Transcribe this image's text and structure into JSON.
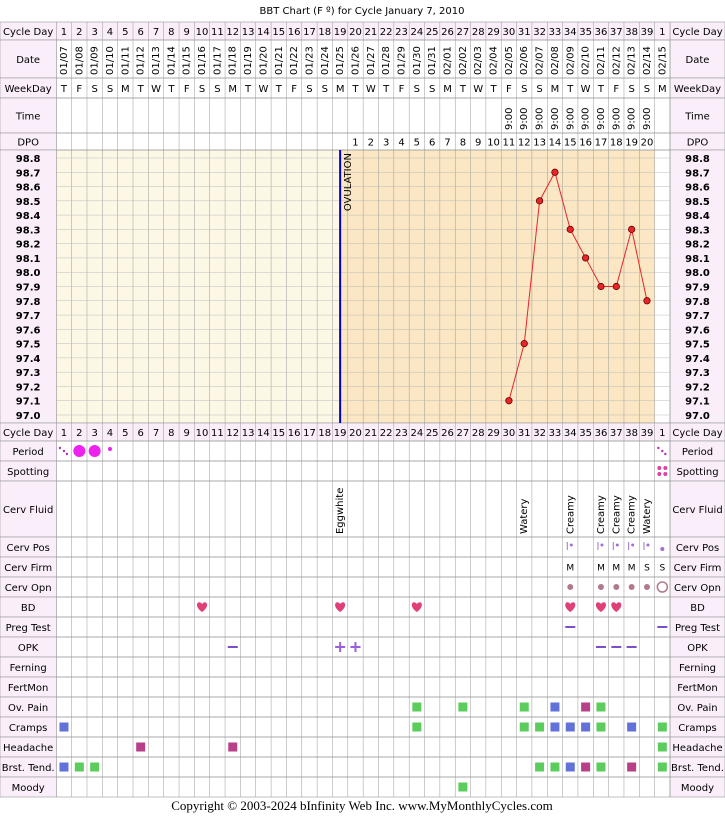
{
  "title": "BBT Chart (F º) for Cycle January 7, 2010",
  "footer": "Copyright © 2003-2024 bInfinity Web Inc.     www.MyMonthlyCycles.com",
  "row_labels": {
    "cycle_day": "Cycle Day",
    "date": "Date",
    "weekday": "WeekDay",
    "time": "Time",
    "dpo": "DPO",
    "period": "Period",
    "spotting": "Spotting",
    "cerv_fluid": "Cerv Fluid",
    "cerv_pos": "Cerv Pos",
    "cerv_firm": "Cerv Firm",
    "cerv_opn": "Cerv Opn",
    "bd": "BD",
    "preg_test": "Preg Test",
    "opk": "OPK",
    "ferning": "Ferning",
    "fertmon": "FertMon",
    "ov_pain": "Ov. Pain",
    "cramps": "Cramps",
    "headache": "Headache",
    "brst_tend": "Brst. Tend.",
    "moody": "Moody"
  },
  "chart_data": {
    "type": "line",
    "categories": [
      1,
      2,
      3,
      4,
      5,
      6,
      7,
      8,
      9,
      10,
      11,
      12,
      13,
      14,
      15,
      16,
      17,
      18,
      19,
      20,
      21,
      22,
      23,
      24,
      25,
      26,
      27,
      28,
      29,
      30,
      31,
      32,
      33,
      34,
      35,
      36,
      37,
      38,
      39,
      1
    ],
    "dates": [
      "01/07",
      "01/08",
      "01/09",
      "01/10",
      "01/11",
      "01/12",
      "01/13",
      "01/14",
      "01/15",
      "01/16",
      "01/17",
      "01/18",
      "01/19",
      "01/20",
      "01/21",
      "01/22",
      "01/23",
      "01/24",
      "01/25",
      "01/26",
      "01/27",
      "01/28",
      "01/29",
      "01/30",
      "01/31",
      "02/01",
      "02/02",
      "02/03",
      "02/04",
      "02/05",
      "02/06",
      "02/07",
      "02/08",
      "02/09",
      "02/10",
      "02/11",
      "02/12",
      "02/13",
      "02/14",
      "02/15"
    ],
    "weekdays": [
      "T",
      "F",
      "S",
      "S",
      "M",
      "T",
      "W",
      "T",
      "F",
      "S",
      "S",
      "M",
      "T",
      "W",
      "T",
      "F",
      "S",
      "S",
      "M",
      "T",
      "W",
      "T",
      "F",
      "S",
      "S",
      "M",
      "T",
      "W",
      "T",
      "F",
      "S",
      "S",
      "M",
      "T",
      "W",
      "T",
      "F",
      "S",
      "S",
      "M"
    ],
    "times": [
      null,
      null,
      null,
      null,
      null,
      null,
      null,
      null,
      null,
      null,
      null,
      null,
      null,
      null,
      null,
      null,
      null,
      null,
      null,
      null,
      null,
      null,
      null,
      null,
      null,
      null,
      null,
      null,
      null,
      "9:00",
      "9:00",
      "9:00",
      "9:00",
      "9:00",
      "9:00",
      "9:00",
      "9:00",
      "9:00",
      "9:00",
      null
    ],
    "dpo": [
      null,
      null,
      null,
      null,
      null,
      null,
      null,
      null,
      null,
      null,
      null,
      null,
      null,
      null,
      null,
      null,
      null,
      null,
      null,
      1,
      2,
      3,
      4,
      5,
      6,
      7,
      8,
      9,
      10,
      11,
      12,
      13,
      14,
      15,
      16,
      17,
      18,
      19,
      20,
      null
    ],
    "series": [
      {
        "color": "#e8262a",
        "values": [
          null,
          null,
          null,
          null,
          null,
          null,
          null,
          null,
          null,
          null,
          null,
          null,
          null,
          null,
          null,
          null,
          null,
          null,
          null,
          null,
          null,
          null,
          null,
          null,
          null,
          null,
          null,
          null,
          null,
          97.1,
          97.5,
          98.5,
          98.7,
          98.3,
          98.1,
          97.9,
          97.9,
          98.3,
          97.8,
          null
        ]
      }
    ],
    "ylim": [
      97.0,
      98.8
    ],
    "yticks": [
      {
        "value": 97,
        "label": "97.0"
      },
      97.1,
      97.2,
      97.3,
      97.4,
      97.5,
      97.6,
      97.7,
      97.8,
      97.9,
      {
        "value": 98,
        "label": "98.0"
      },
      98.1,
      98.2,
      98.3,
      98.4,
      98.5,
      98.6,
      98.7,
      98.8
    ],
    "annotations": [
      "OVULATION"
    ],
    "cerv_fluid": [
      null,
      null,
      null,
      null,
      null,
      null,
      null,
      null,
      null,
      null,
      null,
      null,
      null,
      null,
      null,
      null,
      null,
      null,
      "Eggwhite",
      null,
      null,
      null,
      null,
      null,
      null,
      null,
      null,
      null,
      null,
      null,
      "Watery",
      null,
      null,
      "Creamy",
      null,
      "Creamy",
      "Creamy",
      "Creamy",
      "Watery",
      null
    ],
    "cerv_firm": [
      null,
      null,
      null,
      null,
      null,
      null,
      null,
      null,
      null,
      null,
      null,
      null,
      null,
      null,
      null,
      null,
      null,
      null,
      null,
      null,
      null,
      null,
      null,
      null,
      null,
      null,
      null,
      null,
      null,
      null,
      null,
      null,
      null,
      "M",
      null,
      "M",
      "M",
      "M",
      "S",
      "S"
    ]
  }
}
